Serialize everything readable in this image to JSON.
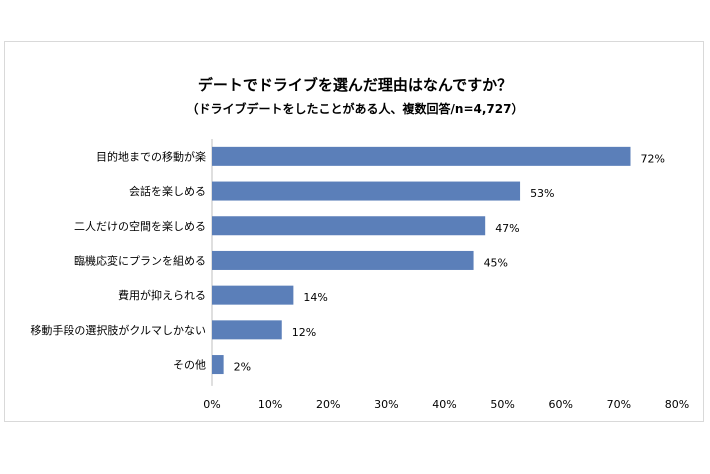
{
  "chart_data": {
    "type": "bar",
    "orientation": "horizontal",
    "title": "デートでドライブを選んだ理由はなんですか？",
    "subtitle": "（ドライブデートをしたことがある人、複数回答/n=4,727）",
    "categories": [
      "目的地までの移動が楽",
      "会話を楽しめる",
      "二人だけの空間を楽しめる",
      "臨機応変にプランを組める",
      "費用が抑えられる",
      "移動手段の選択肢がクルマしかない",
      "その他"
    ],
    "values": [
      72,
      53,
      47,
      45,
      14,
      12,
      2
    ],
    "value_labels": [
      "72%",
      "53%",
      "47%",
      "45%",
      "14%",
      "12%",
      "2%"
    ],
    "xlim": [
      0,
      80
    ],
    "x_ticks": [
      "0%",
      "10%",
      "20%",
      "30%",
      "40%",
      "50%",
      "60%",
      "70%",
      "80%"
    ],
    "bar_color": "#5b7fb9",
    "grid": false
  }
}
